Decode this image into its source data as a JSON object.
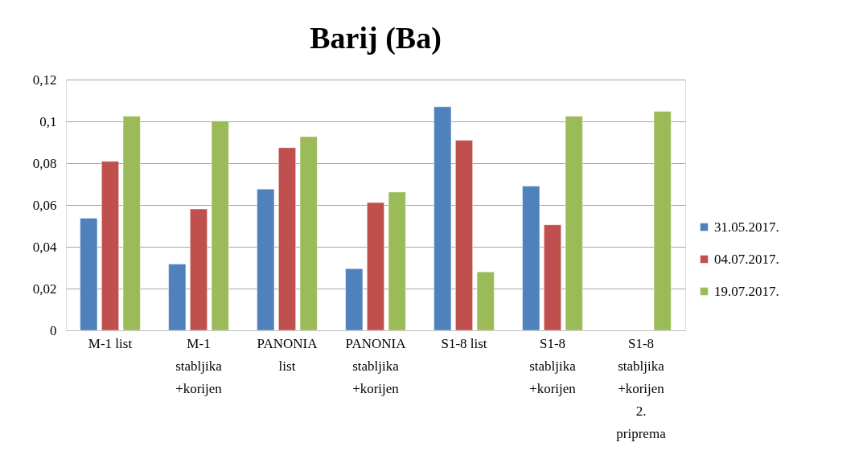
{
  "chart_data": {
    "type": "bar",
    "title": "Barij (Ba)",
    "categories": [
      "M-1 list",
      "M-1 stabljika +korijen",
      "PANONIA list",
      "PANONIA stabljika +korijen",
      "S1-8 list",
      "S1-8 stabljika +korijen",
      "S1-8 stabljika +korijen 2. priprema"
    ],
    "series": [
      {
        "name": "31.05.2017.",
        "color": "#4f81bd",
        "values": [
          0.0537,
          0.0317,
          0.0676,
          0.0295,
          0.107,
          0.069,
          null
        ]
      },
      {
        "name": "04.07.2017.",
        "color": "#c0504d",
        "values": [
          0.0809,
          0.0581,
          0.0874,
          0.0612,
          0.091,
          0.0505,
          null
        ]
      },
      {
        "name": "19.07.2017.",
        "color": "#9bbb59",
        "values": [
          0.1025,
          0.1002,
          0.0927,
          0.0662,
          0.028,
          0.1025,
          0.1048
        ]
      }
    ],
    "ylim": [
      0,
      0.12
    ],
    "yticks": [
      0,
      {
        "value": 0.02,
        "label": "0,02"
      },
      {
        "value": 0.04,
        "label": "0,04"
      },
      {
        "value": 0.06,
        "label": "0,06"
      },
      {
        "value": 0.08,
        "label": "0,08"
      },
      {
        "value": 0.1,
        "label": "0,1"
      },
      {
        "value": 0.12,
        "label": "0,12"
      }
    ],
    "grid": "y",
    "legend": "right"
  }
}
